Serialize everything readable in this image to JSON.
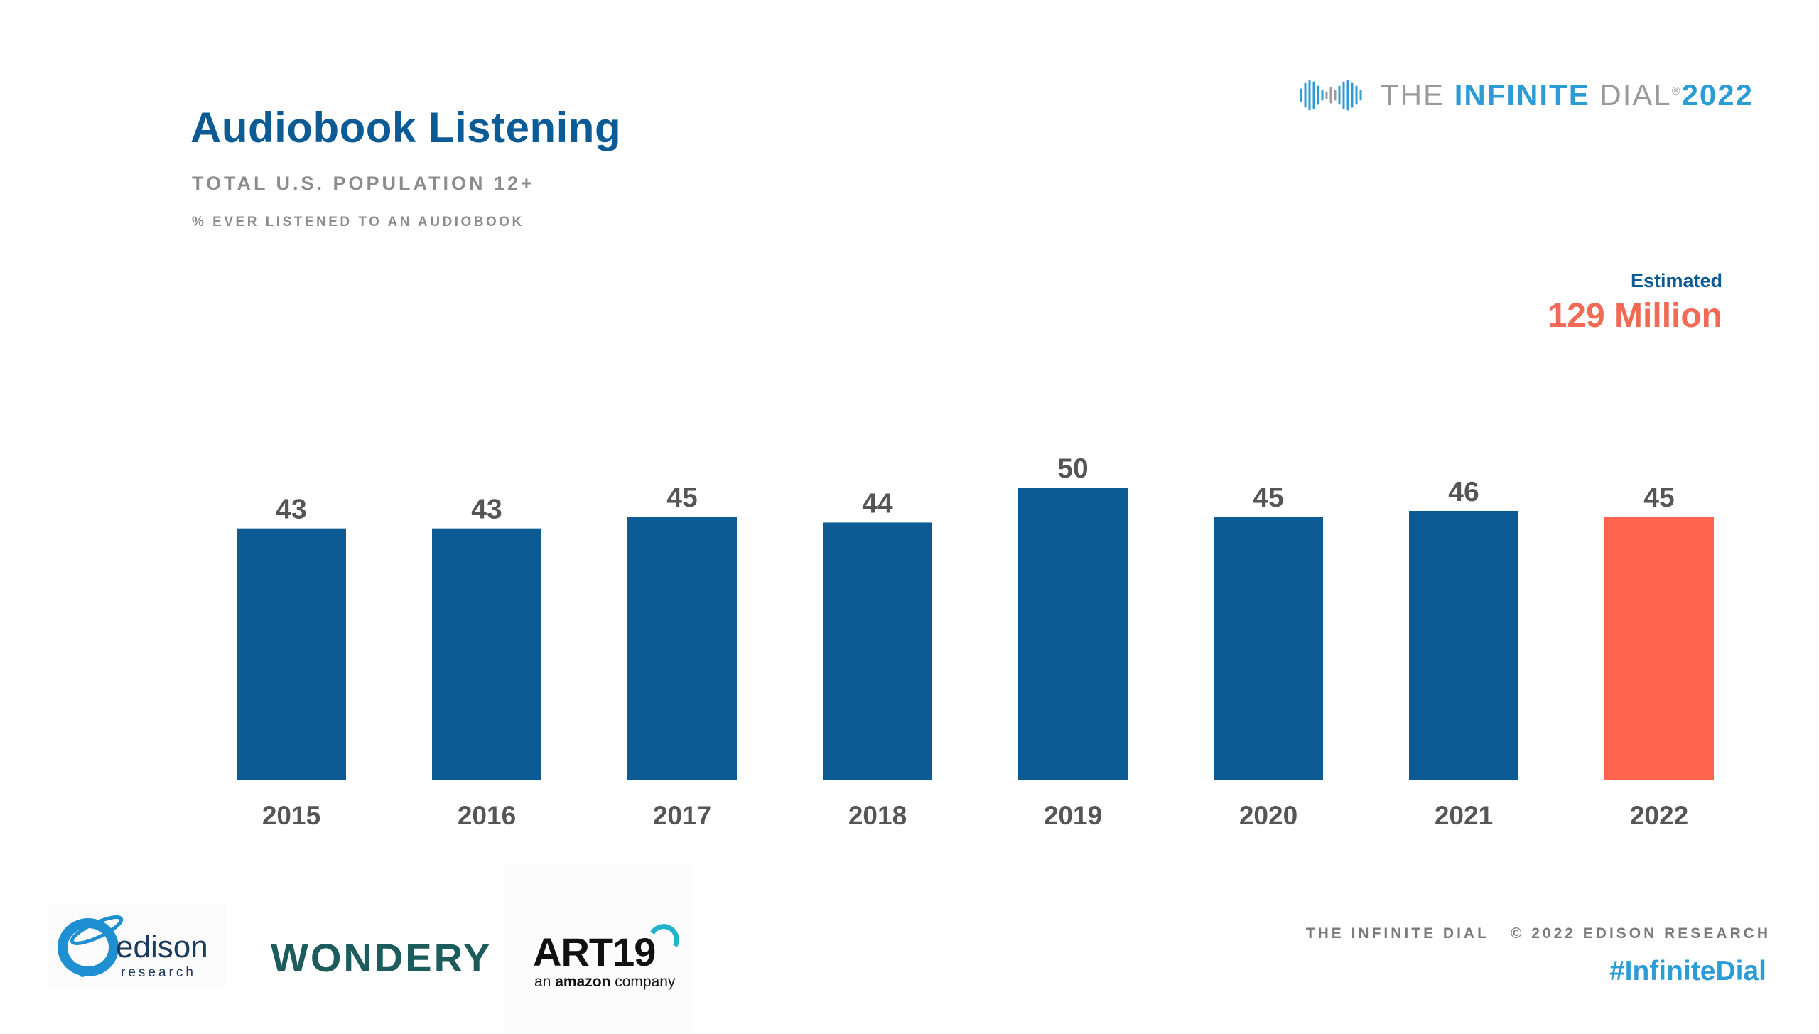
{
  "header": {
    "title": "Audiobook Listening",
    "subtitle": "TOTAL U.S. POPULATION 12+",
    "note": "% EVER LISTENED TO AN AUDIOBOOK"
  },
  "brand": {
    "prefix": "THE ",
    "highlight": "INFINITE",
    "middle": " DIAL",
    "registered": "®",
    "year": "2022"
  },
  "estimate": {
    "label": "Estimated",
    "value": "129 Million"
  },
  "chart_data": {
    "type": "bar",
    "title": "Audiobook Listening",
    "subtitle": "TOTAL U.S. POPULATION 12+",
    "ylabel": "% EVER LISTENED TO AN AUDIOBOOK",
    "xlabel": "",
    "categories": [
      "2015",
      "2016",
      "2017",
      "2018",
      "2019",
      "2020",
      "2021",
      "2022"
    ],
    "values": [
      43,
      43,
      45,
      44,
      50,
      45,
      46,
      45
    ],
    "ylim": [
      0,
      50
    ],
    "grid": false,
    "colors": {
      "default": "#0c5b94",
      "highlight": "#ff644e",
      "labels": "#555555"
    },
    "highlight_category": "2022"
  },
  "logos": {
    "edison": {
      "word": "edison",
      "sub": "research"
    },
    "wondery": "WONDERY",
    "art19": {
      "word": "ART19",
      "sub_prefix": "an ",
      "sub_brand": "amazon",
      "sub_suffix": " company"
    }
  },
  "footer": {
    "left": "THE INFINITE DIAL",
    "right": "© 2022 EDISON RESEARCH",
    "hashtag": "#InfiniteDial"
  }
}
